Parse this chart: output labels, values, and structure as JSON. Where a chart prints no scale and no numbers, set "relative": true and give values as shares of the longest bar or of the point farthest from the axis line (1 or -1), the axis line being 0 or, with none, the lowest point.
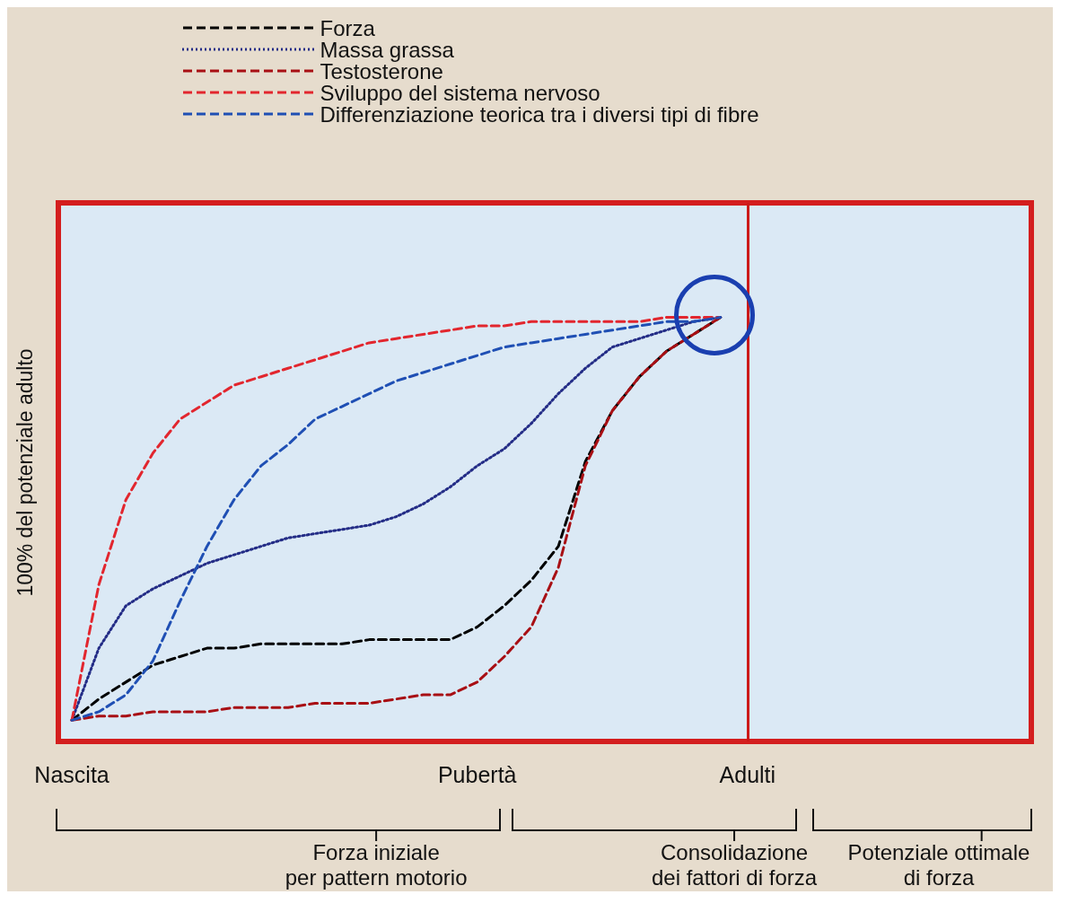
{
  "chart_data": {
    "type": "line",
    "relative": true,
    "ylabel": "100% del potenziale adulto",
    "categories": [
      "Nascita",
      null,
      null,
      null,
      null,
      null,
      null,
      null,
      null,
      null,
      null,
      null,
      null,
      null,
      null,
      "Pubertà",
      null,
      null,
      null,
      null,
      null,
      null,
      null,
      null,
      null,
      "Adulti",
      null,
      null,
      null,
      null,
      null,
      null,
      null,
      null,
      null,
      null
    ],
    "legend": "top",
    "grid": false,
    "marker": "none",
    "series": [
      {
        "name": "Forza",
        "color": "#000000",
        "line_style": "dashed",
        "values": [
          0.05,
          0.1,
          0.14,
          0.18,
          0.2,
          0.22,
          0.22,
          0.23,
          0.23,
          0.23,
          0.23,
          0.24,
          0.24,
          0.24,
          0.24,
          0.27,
          0.32,
          0.38,
          0.46,
          0.66,
          0.78,
          0.86,
          0.92,
          0.96,
          1,
          null,
          null,
          null,
          null,
          null,
          null,
          null,
          null,
          null,
          null,
          null
        ]
      },
      {
        "name": "Massa grassa",
        "color": "#232c86",
        "line_style": "dotted",
        "values": [
          0.05,
          0.22,
          0.32,
          0.36,
          0.39,
          0.42,
          0.44,
          0.46,
          0.48,
          0.49,
          0.5,
          0.51,
          0.53,
          0.56,
          0.6,
          0.65,
          0.69,
          0.75,
          0.82,
          0.88,
          0.93,
          0.95,
          0.97,
          0.99,
          1,
          null,
          null,
          null,
          null,
          null,
          null,
          null,
          null,
          null,
          null,
          null
        ]
      },
      {
        "name": "Testosterone",
        "color": "#a80f14",
        "line_style": "dashed",
        "values": [
          0.05,
          0.06,
          0.06,
          0.07,
          0.07,
          0.07,
          0.08,
          0.08,
          0.08,
          0.09,
          0.09,
          0.09,
          0.1,
          0.11,
          0.11,
          0.14,
          0.2,
          0.27,
          0.41,
          0.65,
          0.78,
          0.86,
          0.92,
          0.96,
          1,
          null,
          null,
          null,
          null,
          null,
          null,
          null,
          null,
          null,
          null,
          null
        ]
      },
      {
        "name": "Sviluppo del sistema nervoso",
        "color": "#e2262e",
        "line_style": "dashed",
        "values": [
          0.05,
          0.37,
          0.57,
          0.68,
          0.76,
          0.8,
          0.84,
          0.86,
          0.88,
          0.9,
          0.92,
          0.94,
          0.95,
          0.96,
          0.97,
          0.98,
          0.98,
          0.99,
          0.99,
          0.99,
          0.99,
          0.99,
          1,
          1,
          1,
          null,
          null,
          null,
          null,
          null,
          null,
          null,
          null,
          null,
          null,
          null
        ]
      },
      {
        "name": "Differenziazione teorica tra i diversi tipi di fibre",
        "color": "#1f4fb4",
        "line_style": "dashed",
        "values": [
          0.05,
          0.07,
          0.11,
          0.19,
          0.33,
          0.46,
          0.57,
          0.65,
          0.7,
          0.76,
          0.79,
          0.82,
          0.85,
          0.87,
          0.89,
          0.91,
          0.93,
          0.94,
          0.95,
          0.96,
          0.97,
          0.98,
          0.99,
          0.99,
          1,
          null,
          null,
          null,
          null,
          null,
          null,
          null,
          null,
          null,
          null,
          null
        ]
      }
    ],
    "ref_lines": [
      {
        "axis": "x",
        "value": "Adulti",
        "color": "#cc1a1a",
        "line_style": "solid"
      }
    ],
    "annotations": [
      "Forza iniziale\nper pattern motorio",
      "Consolidazione\ndei fattori di forza",
      "Potenziale ottimale\ndi forza"
    ]
  }
}
